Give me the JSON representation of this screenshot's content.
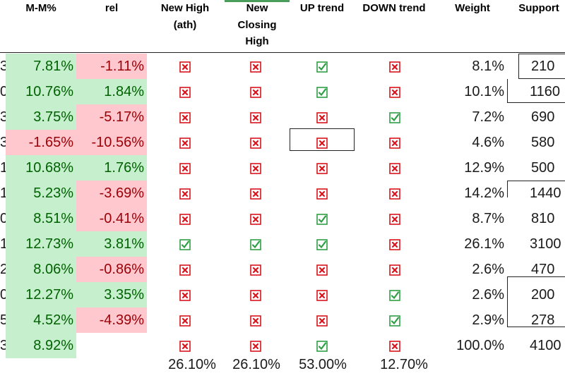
{
  "headers": {
    "mm": "M-M%",
    "rel": "rel",
    "new_high_1": "New High",
    "new_high_2": "(ath)",
    "new_closing_1": "New",
    "new_closing_2": "Closing",
    "new_closing_3": "High",
    "up_trend": "UP trend",
    "down_trend": "DOWN trend",
    "weight": "Weight",
    "support": "Support"
  },
  "rows": [
    {
      "lead": "3",
      "mm": "7.81%",
      "mm_tone": "green",
      "rel": "-1.11%",
      "rel_tone": "red",
      "new_high": "no",
      "new_closing_high": "no",
      "up_trend": "yes",
      "down_trend": "no",
      "weight": "8.1%",
      "support": "210"
    },
    {
      "lead": "0",
      "mm": "10.76%",
      "mm_tone": "green",
      "rel": "1.84%",
      "rel_tone": "green",
      "new_high": "no",
      "new_closing_high": "no",
      "up_trend": "yes",
      "down_trend": "no",
      "weight": "10.1%",
      "support": "1160"
    },
    {
      "lead": "3",
      "mm": "3.75%",
      "mm_tone": "green",
      "rel": "-5.17%",
      "rel_tone": "red",
      "new_high": "no",
      "new_closing_high": "no",
      "up_trend": "no",
      "down_trend": "yes",
      "weight": "7.2%",
      "support": "690"
    },
    {
      "lead": "3",
      "mm": "-1.65%",
      "mm_tone": "red",
      "rel": "-10.56%",
      "rel_tone": "red",
      "new_high": "no",
      "new_closing_high": "no",
      "up_trend": "no",
      "down_trend": "no",
      "weight": "4.6%",
      "support": "580"
    },
    {
      "lead": "1",
      "mm": "10.68%",
      "mm_tone": "green",
      "rel": "1.76%",
      "rel_tone": "green",
      "new_high": "no",
      "new_closing_high": "no",
      "up_trend": "no",
      "down_trend": "no",
      "weight": "12.9%",
      "support": "500"
    },
    {
      "lead": "1",
      "mm": "5.23%",
      "mm_tone": "green",
      "rel": "-3.69%",
      "rel_tone": "red",
      "new_high": "no",
      "new_closing_high": "no",
      "up_trend": "no",
      "down_trend": "no",
      "weight": "14.2%",
      "support": "1440"
    },
    {
      "lead": "0",
      "mm": "8.51%",
      "mm_tone": "green",
      "rel": "-0.41%",
      "rel_tone": "red",
      "new_high": "no",
      "new_closing_high": "no",
      "up_trend": "yes",
      "down_trend": "no",
      "weight": "8.7%",
      "support": "810"
    },
    {
      "lead": "1",
      "mm": "12.73%",
      "mm_tone": "green",
      "rel": "3.81%",
      "rel_tone": "green",
      "new_high": "yes",
      "new_closing_high": "yes",
      "up_trend": "yes",
      "down_trend": "no",
      "weight": "26.1%",
      "support": "3100"
    },
    {
      "lead": "2",
      "mm": "8.06%",
      "mm_tone": "green",
      "rel": "-0.86%",
      "rel_tone": "red",
      "new_high": "no",
      "new_closing_high": "no",
      "up_trend": "no",
      "down_trend": "no",
      "weight": "2.6%",
      "support": "470"
    },
    {
      "lead": "0",
      "mm": "12.27%",
      "mm_tone": "green",
      "rel": "3.35%",
      "rel_tone": "green",
      "new_high": "no",
      "new_closing_high": "no",
      "up_trend": "no",
      "down_trend": "yes",
      "weight": "2.6%",
      "support": "200"
    },
    {
      "lead": "5",
      "mm": "4.52%",
      "mm_tone": "green",
      "rel": "-4.39%",
      "rel_tone": "red",
      "new_high": "no",
      "new_closing_high": "no",
      "up_trend": "no",
      "down_trend": "yes",
      "weight": "2.9%",
      "support": "278"
    },
    {
      "lead": "3",
      "mm": "8.92%",
      "mm_tone": "green",
      "rel": "",
      "rel_tone": "none",
      "new_high": "no",
      "new_closing_high": "no",
      "up_trend": "yes",
      "down_trend": "no",
      "weight": "100.0%",
      "support": "4100"
    }
  ],
  "totals": {
    "new_high": "26.10%",
    "new_closing_high": "26.10%",
    "up_trend": "53.00%",
    "down_trend": "12.70%"
  },
  "colors": {
    "positive_fill": "#c6efce",
    "positive_text": "#006100",
    "negative_fill": "#ffc7ce",
    "negative_text": "#9c0006",
    "check_icon": "#2e9e44",
    "cross_icon": "#d9141c"
  },
  "icons": {
    "yes": "check-icon",
    "no": "cross-icon"
  }
}
